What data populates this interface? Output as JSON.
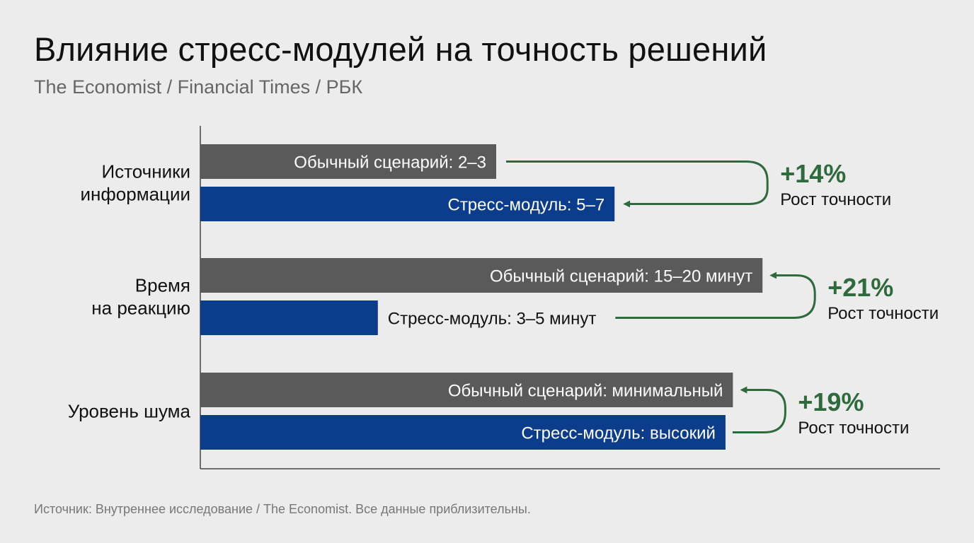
{
  "title": "Влияние стресс-модулей на точность решений",
  "subtitle": "The Economist / Financial Times / РБК",
  "footnote": "Источник: Внутреннее исследование / The Economist. Все данные приблизительны.",
  "colors": {
    "baseline_bar": "#5a5a5a",
    "stress_bar": "#0b3d8c",
    "accent_green": "#2e6b3c",
    "axis": "#444444"
  },
  "chart_data": {
    "type": "bar",
    "orientation": "horizontal",
    "grid": false,
    "categories": [
      "Источники информации",
      "Время на реакцию",
      "Уровень шума"
    ],
    "category_lines": [
      [
        "Источники",
        "информации"
      ],
      [
        "Время",
        "на реакцию"
      ],
      [
        "Уровень шума"
      ]
    ],
    "series": [
      {
        "values": [
          0.4,
          0.76,
          0.72
        ],
        "labels": [
          "Обычный сценарий: 2–3",
          "Обычный сценарий: 15–20 минут",
          "Обычный сценарий: минимальный"
        ]
      },
      {
        "values": [
          0.56,
          0.24,
          0.71
        ],
        "labels": [
          "Стресс-модуль: 5–7",
          "Стресс-модуль: 3–5 минут",
          "Стресс-модуль: высокий"
        ]
      }
    ],
    "annotations": [
      {
        "value": "+14%",
        "label": "Рост точности",
        "direction": "baseline-to-stress"
      },
      {
        "value": "+21%",
        "label": "Рост точности",
        "direction": "stress-to-baseline"
      },
      {
        "value": "+19%",
        "label": "Рост точности",
        "direction": "stress-to-baseline"
      }
    ]
  }
}
